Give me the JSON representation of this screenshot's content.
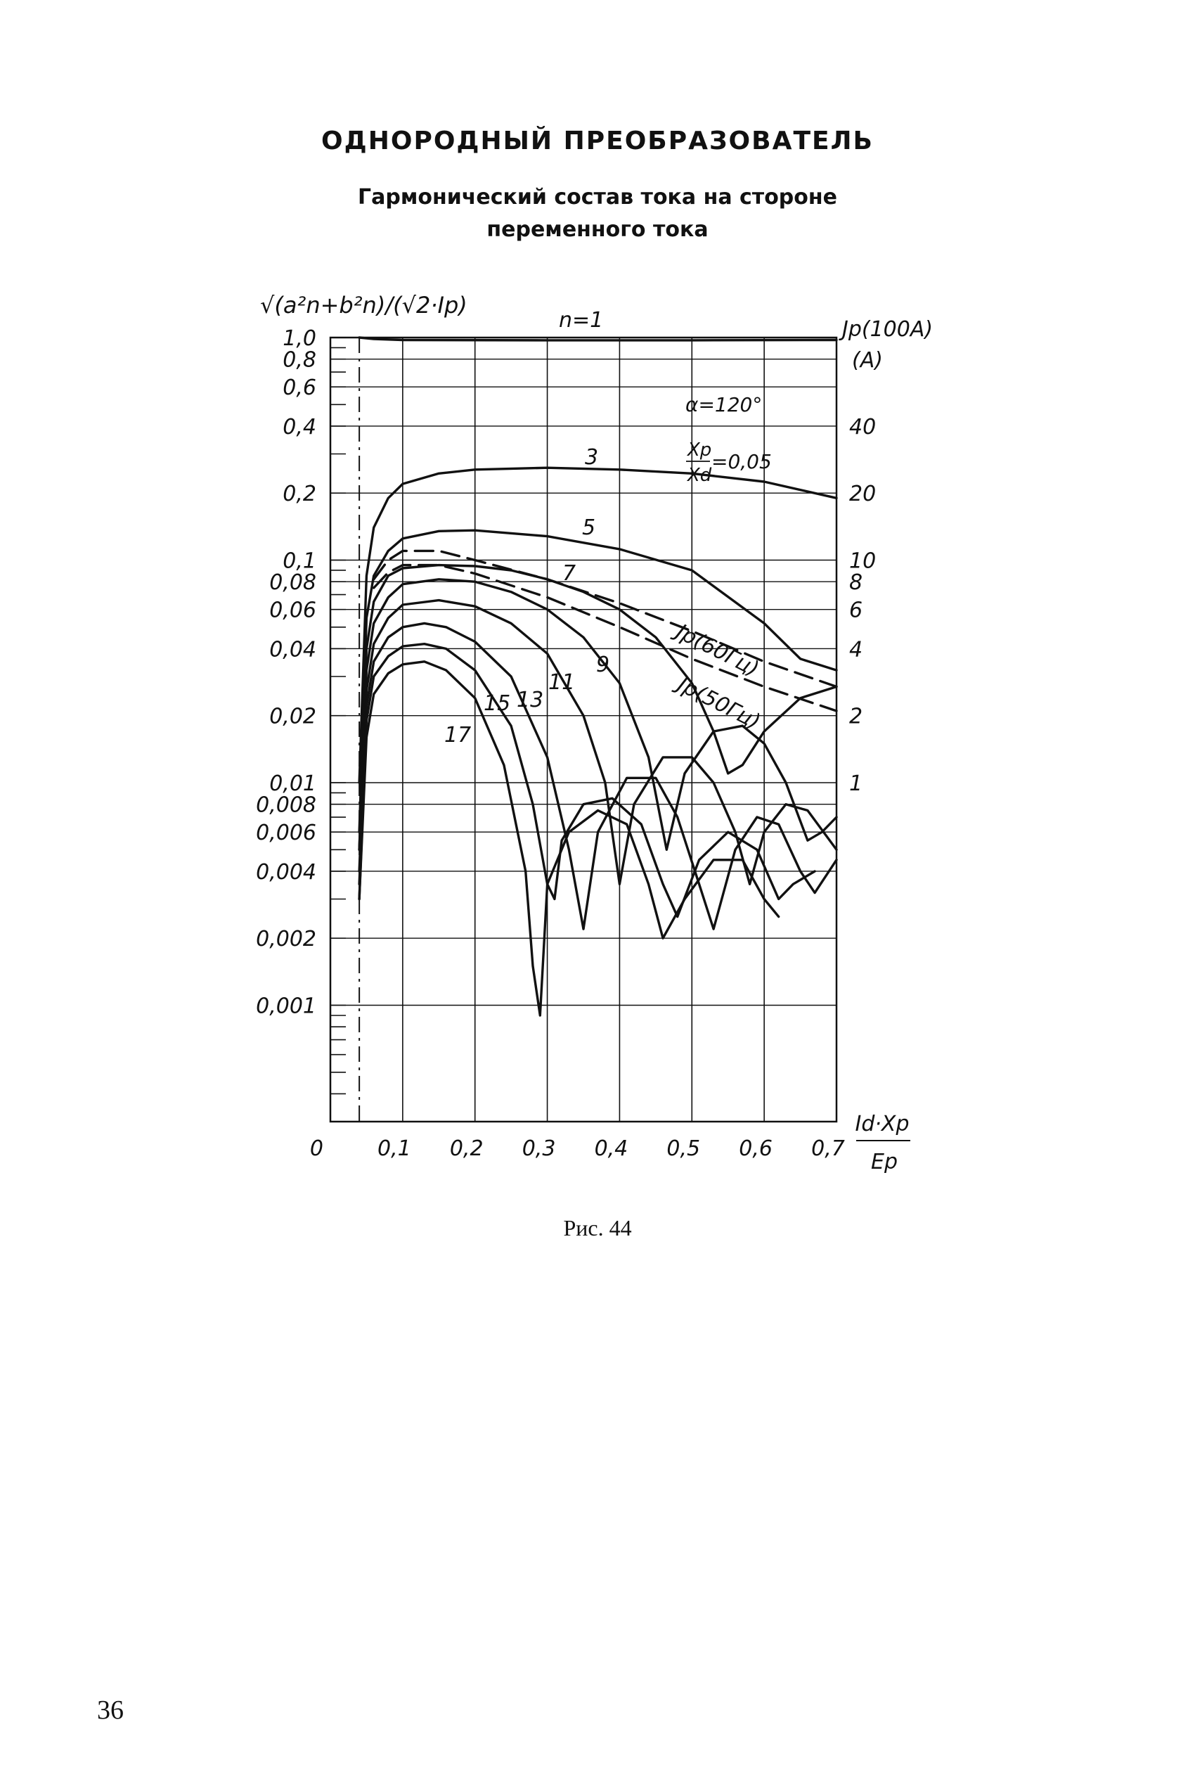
{
  "page": {
    "title": "ОДНОРОДНЫЙ ПРЕОБРАЗОВАТЕЛЬ",
    "subtitle_line1": "Гармонический состав тока на стороне",
    "subtitle_line2": "переменного тока",
    "caption": "Рис. 44",
    "page_number": "36"
  },
  "chart_data": {
    "type": "line",
    "y_scale": "log",
    "ylim": [
      0.0003,
      1.0
    ],
    "xlim": [
      0,
      0.7
    ],
    "left_axis_label": "√(a²n+b²n)/(√2·Ip)",
    "right_axis_label_1": "Jp(100A)",
    "right_axis_label_2": "(A)",
    "x_label_num": "Id·Xp",
    "x_label_den": "Ep",
    "x_ticks": [
      "0",
      "0,1",
      "0,2",
      "0,3",
      "0,4",
      "0,5",
      "0,6",
      "0,7"
    ],
    "y_ticks": [
      {
        "v": 1.0,
        "t": "1,0"
      },
      {
        "v": 0.8,
        "t": "0,8"
      },
      {
        "v": 0.6,
        "t": "0,6"
      },
      {
        "v": 0.4,
        "t": "0,4"
      },
      {
        "v": 0.2,
        "t": "0,2"
      },
      {
        "v": 0.1,
        "t": "0,1"
      },
      {
        "v": 0.08,
        "t": "0,08"
      },
      {
        "v": 0.06,
        "t": "0,06"
      },
      {
        "v": 0.04,
        "t": "0,04"
      },
      {
        "v": 0.02,
        "t": "0,02"
      },
      {
        "v": 0.01,
        "t": "0,01"
      },
      {
        "v": 0.008,
        "t": "0,008"
      },
      {
        "v": 0.006,
        "t": "0,006"
      },
      {
        "v": 0.004,
        "t": "0,004"
      },
      {
        "v": 0.002,
        "t": "0,002"
      },
      {
        "v": 0.001,
        "t": "0,001"
      }
    ],
    "right_ticks": [
      {
        "v": 0.4,
        "t": "40"
      },
      {
        "v": 0.2,
        "t": "20"
      },
      {
        "v": 0.1,
        "t": "10"
      },
      {
        "v": 0.08,
        "t": "8"
      },
      {
        "v": 0.06,
        "t": "6"
      },
      {
        "v": 0.04,
        "t": "4"
      },
      {
        "v": 0.02,
        "t": "2"
      },
      {
        "v": 0.01,
        "t": "1"
      }
    ],
    "annotations": {
      "alpha": "α=120°",
      "ratio_num": "Xp",
      "ratio_den": "Xd",
      "ratio_val": "=0,05"
    },
    "series": [
      {
        "name": "n=1",
        "label": "n=1",
        "style": "solid",
        "points": [
          [
            0.04,
            1.0
          ],
          [
            0.06,
            0.985
          ],
          [
            0.1,
            0.975
          ],
          [
            0.3,
            0.972
          ],
          [
            0.5,
            0.972
          ],
          [
            0.7,
            0.975
          ]
        ]
      },
      {
        "name": "3",
        "label": "3",
        "style": "solid",
        "points": [
          [
            0.04,
            0.01
          ],
          [
            0.05,
            0.085
          ],
          [
            0.06,
            0.14
          ],
          [
            0.08,
            0.19
          ],
          [
            0.1,
            0.22
          ],
          [
            0.15,
            0.245
          ],
          [
            0.2,
            0.255
          ],
          [
            0.3,
            0.26
          ],
          [
            0.4,
            0.255
          ],
          [
            0.5,
            0.245
          ],
          [
            0.6,
            0.225
          ],
          [
            0.7,
            0.19
          ]
        ]
      },
      {
        "name": "5",
        "label": "5",
        "style": "solid",
        "points": [
          [
            0.04,
            0.006
          ],
          [
            0.05,
            0.055
          ],
          [
            0.06,
            0.085
          ],
          [
            0.08,
            0.11
          ],
          [
            0.1,
            0.125
          ],
          [
            0.15,
            0.135
          ],
          [
            0.2,
            0.136
          ],
          [
            0.3,
            0.128
          ],
          [
            0.4,
            0.112
          ],
          [
            0.5,
            0.09
          ],
          [
            0.6,
            0.052
          ],
          [
            0.65,
            0.036
          ],
          [
            0.7,
            0.032
          ]
        ]
      },
      {
        "name": "7",
        "label": "7",
        "style": "solid",
        "points": [
          [
            0.04,
            0.005
          ],
          [
            0.05,
            0.04
          ],
          [
            0.06,
            0.065
          ],
          [
            0.08,
            0.085
          ],
          [
            0.1,
            0.092
          ],
          [
            0.15,
            0.095
          ],
          [
            0.2,
            0.094
          ],
          [
            0.25,
            0.09
          ],
          [
            0.3,
            0.082
          ],
          [
            0.35,
            0.072
          ],
          [
            0.4,
            0.06
          ],
          [
            0.45,
            0.045
          ],
          [
            0.5,
            0.028
          ],
          [
            0.53,
            0.017
          ],
          [
            0.55,
            0.011
          ],
          [
            0.57,
            0.012
          ],
          [
            0.6,
            0.017
          ],
          [
            0.65,
            0.024
          ],
          [
            0.7,
            0.027
          ]
        ]
      },
      {
        "name": "9",
        "label": "9",
        "style": "solid",
        "points": [
          [
            0.04,
            0.005
          ],
          [
            0.05,
            0.032
          ],
          [
            0.06,
            0.052
          ],
          [
            0.08,
            0.068
          ],
          [
            0.1,
            0.078
          ],
          [
            0.15,
            0.082
          ],
          [
            0.2,
            0.08
          ],
          [
            0.25,
            0.072
          ],
          [
            0.3,
            0.06
          ],
          [
            0.35,
            0.045
          ],
          [
            0.4,
            0.028
          ],
          [
            0.44,
            0.013
          ],
          [
            0.465,
            0.005
          ],
          [
            0.49,
            0.011
          ],
          [
            0.53,
            0.017
          ],
          [
            0.57,
            0.018
          ],
          [
            0.6,
            0.015
          ],
          [
            0.63,
            0.01
          ],
          [
            0.66,
            0.0055
          ],
          [
            0.68,
            0.006
          ],
          [
            0.7,
            0.007
          ]
        ]
      },
      {
        "name": "11",
        "label": "11",
        "style": "solid",
        "points": [
          [
            0.04,
            0.004
          ],
          [
            0.05,
            0.026
          ],
          [
            0.06,
            0.042
          ],
          [
            0.08,
            0.055
          ],
          [
            0.1,
            0.063
          ],
          [
            0.15,
            0.066
          ],
          [
            0.2,
            0.062
          ],
          [
            0.25,
            0.052
          ],
          [
            0.3,
            0.038
          ],
          [
            0.35,
            0.02
          ],
          [
            0.38,
            0.01
          ],
          [
            0.4,
            0.0035
          ],
          [
            0.42,
            0.008
          ],
          [
            0.46,
            0.013
          ],
          [
            0.5,
            0.013
          ],
          [
            0.53,
            0.01
          ],
          [
            0.56,
            0.006
          ],
          [
            0.58,
            0.0035
          ],
          [
            0.6,
            0.006
          ],
          [
            0.63,
            0.008
          ],
          [
            0.66,
            0.0075
          ],
          [
            0.7,
            0.005
          ]
        ]
      },
      {
        "name": "13",
        "label": "13",
        "style": "solid",
        "points": [
          [
            0.04,
            0.0035
          ],
          [
            0.05,
            0.022
          ],
          [
            0.06,
            0.035
          ],
          [
            0.08,
            0.045
          ],
          [
            0.1,
            0.05
          ],
          [
            0.13,
            0.052
          ],
          [
            0.16,
            0.05
          ],
          [
            0.2,
            0.043
          ],
          [
            0.25,
            0.03
          ],
          [
            0.3,
            0.013
          ],
          [
            0.33,
            0.005
          ],
          [
            0.35,
            0.0022
          ],
          [
            0.37,
            0.006
          ],
          [
            0.41,
            0.0105
          ],
          [
            0.45,
            0.0105
          ],
          [
            0.48,
            0.007
          ],
          [
            0.51,
            0.0035
          ],
          [
            0.53,
            0.0022
          ],
          [
            0.56,
            0.005
          ],
          [
            0.59,
            0.007
          ],
          [
            0.62,
            0.0065
          ],
          [
            0.65,
            0.004
          ],
          [
            0.67,
            0.0032
          ],
          [
            0.7,
            0.0045
          ]
        ]
      },
      {
        "name": "15",
        "label": "15",
        "style": "solid",
        "points": [
          [
            0.04,
            0.003
          ],
          [
            0.05,
            0.019
          ],
          [
            0.06,
            0.03
          ],
          [
            0.08,
            0.037
          ],
          [
            0.1,
            0.041
          ],
          [
            0.13,
            0.042
          ],
          [
            0.16,
            0.04
          ],
          [
            0.2,
            0.032
          ],
          [
            0.25,
            0.018
          ],
          [
            0.28,
            0.008
          ],
          [
            0.3,
            0.0035
          ],
          [
            0.31,
            0.003
          ],
          [
            0.32,
            0.0055
          ],
          [
            0.35,
            0.008
          ],
          [
            0.39,
            0.0085
          ],
          [
            0.43,
            0.0065
          ],
          [
            0.46,
            0.0035
          ],
          [
            0.48,
            0.0025
          ],
          [
            0.51,
            0.0045
          ],
          [
            0.55,
            0.006
          ],
          [
            0.59,
            0.005
          ],
          [
            0.62,
            0.003
          ],
          [
            0.64,
            0.0035
          ],
          [
            0.67,
            0.004
          ]
        ]
      },
      {
        "name": "17",
        "label": "17",
        "style": "solid",
        "points": [
          [
            0.04,
            0.003
          ],
          [
            0.05,
            0.016
          ],
          [
            0.06,
            0.025
          ],
          [
            0.08,
            0.031
          ],
          [
            0.1,
            0.034
          ],
          [
            0.13,
            0.035
          ],
          [
            0.16,
            0.032
          ],
          [
            0.2,
            0.024
          ],
          [
            0.24,
            0.012
          ],
          [
            0.27,
            0.004
          ],
          [
            0.28,
            0.0015
          ],
          [
            0.29,
            0.0009
          ],
          [
            0.3,
            0.0035
          ],
          [
            0.33,
            0.006
          ],
          [
            0.37,
            0.0075
          ],
          [
            0.41,
            0.0065
          ],
          [
            0.44,
            0.0035
          ],
          [
            0.46,
            0.002
          ],
          [
            0.49,
            0.003
          ],
          [
            0.53,
            0.0045
          ],
          [
            0.57,
            0.0045
          ],
          [
            0.6,
            0.003
          ],
          [
            0.62,
            0.0025
          ]
        ]
      },
      {
        "name": "Jp(60Hz)",
        "label": "Jp(60Гц)",
        "style": "dashed",
        "points": [
          [
            0.06,
            0.082
          ],
          [
            0.08,
            0.1
          ],
          [
            0.1,
            0.11
          ],
          [
            0.15,
            0.11
          ],
          [
            0.2,
            0.1
          ],
          [
            0.3,
            0.082
          ],
          [
            0.4,
            0.064
          ],
          [
            0.5,
            0.048
          ],
          [
            0.6,
            0.035
          ],
          [
            0.7,
            0.027
          ]
        ]
      },
      {
        "name": "Jp(50Hz)",
        "label": "Jp(50Гц)",
        "style": "dashed",
        "points": [
          [
            0.06,
            0.075
          ],
          [
            0.08,
            0.088
          ],
          [
            0.1,
            0.095
          ],
          [
            0.15,
            0.095
          ],
          [
            0.2,
            0.087
          ],
          [
            0.3,
            0.068
          ],
          [
            0.4,
            0.05
          ],
          [
            0.5,
            0.036
          ],
          [
            0.6,
            0.027
          ],
          [
            0.7,
            0.021
          ]
        ]
      }
    ]
  }
}
